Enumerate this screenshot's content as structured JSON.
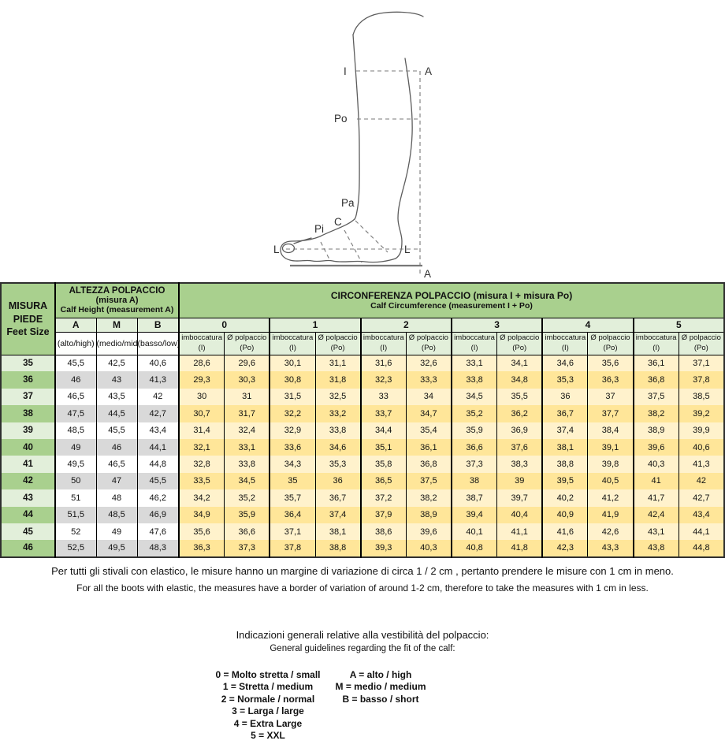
{
  "illustration": {
    "labels": {
      "top_i": "I",
      "top_a": "A",
      "po": "Po",
      "pa": "Pa",
      "c": "C",
      "pi": "Pi",
      "l_left": "L",
      "l_right": "L",
      "bottom_a": "A"
    }
  },
  "table": {
    "feet_size": [
      "MISURA",
      "PIEDE",
      "Feet Size"
    ],
    "calf_height": {
      "title": "ALTEZZA POLPACCIO",
      "subtitle": "(misura A)",
      "subtitle_en": "Calf Height (measurement A)",
      "cols": [
        {
          "key": "A",
          "sub": "(alto/high)"
        },
        {
          "key": "M",
          "sub": "(medio/mid)"
        },
        {
          "key": "B",
          "sub": "(basso/low)"
        }
      ]
    },
    "calf_circumference": {
      "title": "CIRCONFERENZA POLPACCIO  (misura I + misura Po)",
      "subtitle": "Calf Circumference (measurement I + Po)",
      "groups": [
        "0",
        "1",
        "2",
        "3",
        "4",
        "5"
      ],
      "sub_cols": {
        "i_line1": "imboccatura",
        "i_line2": "(I)",
        "po_line1": "Ø polpaccio",
        "po_line2": "(Po)"
      }
    },
    "rows": [
      {
        "size": "35",
        "heights": [
          "45,5",
          "42,5",
          "40,6"
        ],
        "circ": [
          "28,6",
          "29,6",
          "30,1",
          "31,1",
          "31,6",
          "32,6",
          "33,1",
          "34,1",
          "34,6",
          "35,6",
          "36,1",
          "37,1"
        ]
      },
      {
        "size": "36",
        "heights": [
          "46",
          "43",
          "41,3"
        ],
        "circ": [
          "29,3",
          "30,3",
          "30,8",
          "31,8",
          "32,3",
          "33,3",
          "33,8",
          "34,8",
          "35,3",
          "36,3",
          "36,8",
          "37,8"
        ]
      },
      {
        "size": "37",
        "heights": [
          "46,5",
          "43,5",
          "42"
        ],
        "circ": [
          "30",
          "31",
          "31,5",
          "32,5",
          "33",
          "34",
          "34,5",
          "35,5",
          "36",
          "37",
          "37,5",
          "38,5"
        ]
      },
      {
        "size": "38",
        "heights": [
          "47,5",
          "44,5",
          "42,7"
        ],
        "circ": [
          "30,7",
          "31,7",
          "32,2",
          "33,2",
          "33,7",
          "34,7",
          "35,2",
          "36,2",
          "36,7",
          "37,7",
          "38,2",
          "39,2"
        ]
      },
      {
        "size": "39",
        "heights": [
          "48,5",
          "45,5",
          "43,4"
        ],
        "circ": [
          "31,4",
          "32,4",
          "32,9",
          "33,8",
          "34,4",
          "35,4",
          "35,9",
          "36,9",
          "37,4",
          "38,4",
          "38,9",
          "39,9"
        ]
      },
      {
        "size": "40",
        "heights": [
          "49",
          "46",
          "44,1"
        ],
        "circ": [
          "32,1",
          "33,1",
          "33,6",
          "34,6",
          "35,1",
          "36,1",
          "36,6",
          "37,6",
          "38,1",
          "39,1",
          "39,6",
          "40,6"
        ]
      },
      {
        "size": "41",
        "heights": [
          "49,5",
          "46,5",
          "44,8"
        ],
        "circ": [
          "32,8",
          "33,8",
          "34,3",
          "35,3",
          "35,8",
          "36,8",
          "37,3",
          "38,3",
          "38,8",
          "39,8",
          "40,3",
          "41,3"
        ]
      },
      {
        "size": "42",
        "heights": [
          "50",
          "47",
          "45,5"
        ],
        "circ": [
          "33,5",
          "34,5",
          "35",
          "36",
          "36,5",
          "37,5",
          "38",
          "39",
          "39,5",
          "40,5",
          "41",
          "42"
        ]
      },
      {
        "size": "43",
        "heights": [
          "51",
          "48",
          "46,2"
        ],
        "circ": [
          "34,2",
          "35,2",
          "35,7",
          "36,7",
          "37,2",
          "38,2",
          "38,7",
          "39,7",
          "40,2",
          "41,2",
          "41,7",
          "42,7"
        ]
      },
      {
        "size": "44",
        "heights": [
          "51,5",
          "48,5",
          "46,9"
        ],
        "circ": [
          "34,9",
          "35,9",
          "36,4",
          "37,4",
          "37,9",
          "38,9",
          "39,4",
          "40,4",
          "40,9",
          "41,9",
          "42,4",
          "43,4"
        ]
      },
      {
        "size": "45",
        "heights": [
          "52",
          "49",
          "47,6"
        ],
        "circ": [
          "35,6",
          "36,6",
          "37,1",
          "38,1",
          "38,6",
          "39,6",
          "40,1",
          "41,1",
          "41,6",
          "42,6",
          "43,1",
          "44,1"
        ]
      },
      {
        "size": "46",
        "heights": [
          "52,5",
          "49,5",
          "48,3"
        ],
        "circ": [
          "36,3",
          "37,3",
          "37,8",
          "38,8",
          "39,3",
          "40,3",
          "40,8",
          "41,8",
          "42,3",
          "43,3",
          "43,8",
          "44,8"
        ]
      }
    ]
  },
  "notes": {
    "it": "Per tutti gli stivali con elastico, le misure hanno un margine di variazione di circa 1 / 2 cm , pertanto prendere le misure con 1 cm in meno.",
    "en": "For all the boots with elastic, the measures have a border of variation of around 1-2 cm, therefore to take the measures with 1 cm in less."
  },
  "legend": {
    "title_it": "Indicazioni generali relative alla vestibilità del polpaccio:",
    "title_en": "General guidelines regarding the fit of the calf:",
    "fit": [
      "0 = Molto stretta / small",
      "1 = Stretta / medium",
      "2 = Normale / normal",
      "3 = Larga / large",
      "4 = Extra Large",
      "5 = XXL"
    ],
    "height": [
      "A = alto / high",
      "M = medio / medium",
      "B = basso / short"
    ]
  },
  "colors": {
    "header_green": "#A9D08E",
    "light_green": "#E2EFDA",
    "row_gray": "#D9D9D9",
    "yellow_light": "#FFF2CC",
    "yellow_dark": "#FFE699"
  }
}
